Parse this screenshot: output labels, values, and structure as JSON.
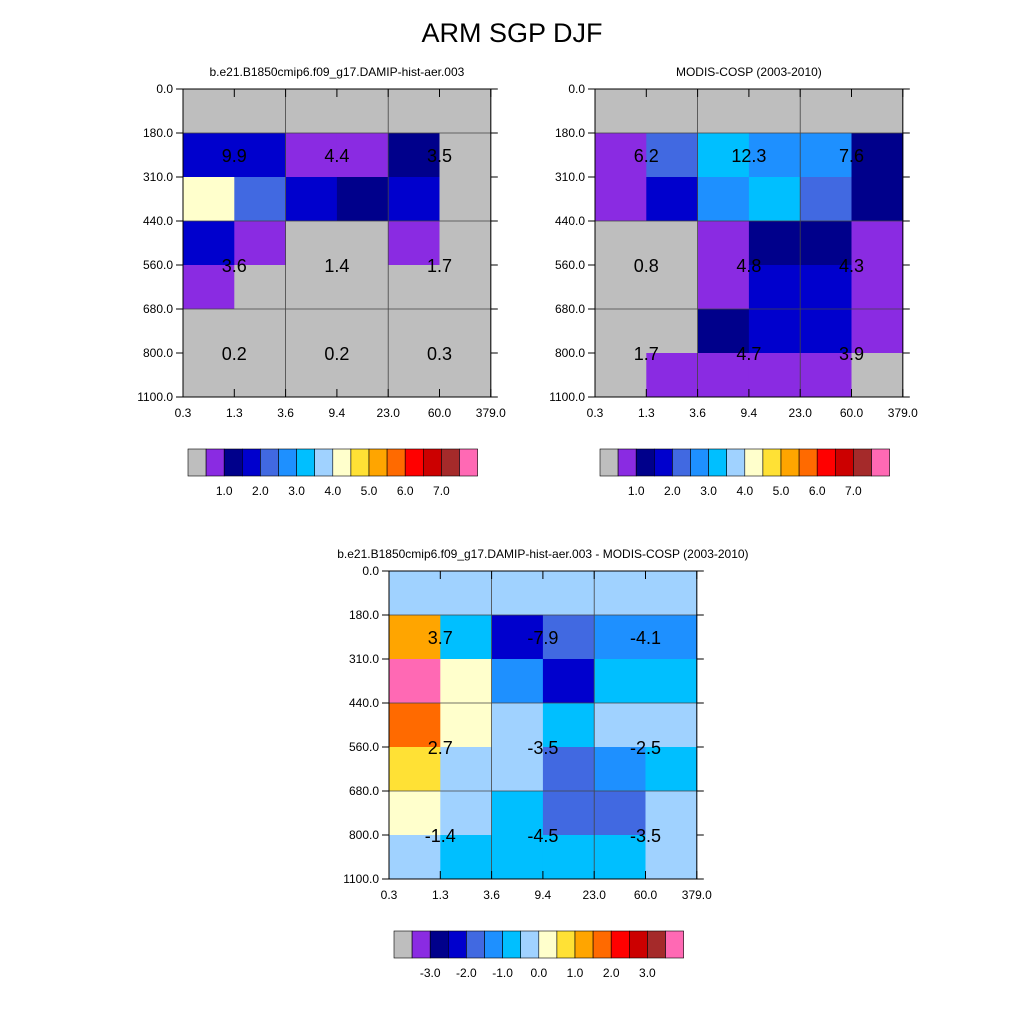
{
  "title": "ARM SGP DJF",
  "palettes": {
    "field": [
      "#bebebe",
      "#8a2be2",
      "#00008b",
      "#0000cd",
      "#4169e1",
      "#1e90ff",
      "#00bfff",
      "#a0d2ff",
      "#ffffcc",
      "#ffe135",
      "#ffa500",
      "#ff6a00",
      "#ff0000",
      "#cc0000",
      "#a52a2a",
      "#ff69b4"
    ],
    "diff": [
      "#bebebe",
      "#8a2be2",
      "#00008b",
      "#0000cd",
      "#4169e1",
      "#1e90ff",
      "#00bfff",
      "#a0d2ff",
      "#ffffcc",
      "#ffe135",
      "#ffa500",
      "#ff6a00",
      "#ff0000",
      "#cc0000",
      "#a52a2a",
      "#ff69b4"
    ]
  },
  "chart_data": [
    {
      "type": "heatmap",
      "title": "b.e21.B1850cmip6.f09_g17.DAMIP-hist-aer.003",
      "x_ticks": [
        "0.3",
        "1.3",
        "3.6",
        "9.4",
        "23.0",
        "60.0",
        "379.0"
      ],
      "y_ticks": [
        "0.0",
        "180.0",
        "310.0",
        "440.0",
        "560.0",
        "680.0",
        "800.0",
        "1100.0"
      ],
      "cells": [
        [
          0,
          0,
          0,
          0,
          0,
          0
        ],
        [
          3,
          3,
          1,
          1,
          2,
          0
        ],
        [
          8,
          4,
          3,
          2,
          3,
          0
        ],
        [
          3,
          1,
          0,
          0,
          1,
          0
        ],
        [
          1,
          0,
          0,
          0,
          0,
          0
        ],
        [
          0,
          0,
          0,
          0,
          0,
          0
        ],
        [
          0,
          0,
          0,
          0,
          0,
          0
        ]
      ],
      "annotations": [
        {
          "label": "9.9",
          "col": 1,
          "row": 1.5
        },
        {
          "label": "4.4",
          "col": 3,
          "row": 1.5
        },
        {
          "label": "3.5",
          "col": 5,
          "row": 1.5
        },
        {
          "label": "3.6",
          "col": 1,
          "row": 4
        },
        {
          "label": "1.4",
          "col": 3,
          "row": 4
        },
        {
          "label": "1.7",
          "col": 5,
          "row": 4
        },
        {
          "label": "0.2",
          "col": 1,
          "row": 6
        },
        {
          "label": "0.2",
          "col": 3,
          "row": 6
        },
        {
          "label": "0.3",
          "col": 5,
          "row": 6
        }
      ],
      "colorbar_labels": [
        "1.0",
        "2.0",
        "3.0",
        "4.0",
        "5.0",
        "6.0",
        "7.0"
      ],
      "grid": true
    },
    {
      "type": "heatmap",
      "title": "MODIS-COSP (2003-2010)",
      "x_ticks": [
        "0.3",
        "1.3",
        "3.6",
        "9.4",
        "23.0",
        "60.0",
        "379.0"
      ],
      "y_ticks": [
        "0.0",
        "180.0",
        "310.0",
        "440.0",
        "560.0",
        "680.0",
        "800.0",
        "1100.0"
      ],
      "cells": [
        [
          0,
          0,
          0,
          0,
          0,
          0
        ],
        [
          1,
          4,
          6,
          5,
          5,
          2
        ],
        [
          1,
          3,
          5,
          6,
          4,
          2
        ],
        [
          0,
          0,
          1,
          2,
          2,
          1
        ],
        [
          0,
          0,
          1,
          3,
          3,
          1
        ],
        [
          0,
          0,
          2,
          3,
          3,
          1
        ],
        [
          0,
          1,
          1,
          1,
          1,
          0
        ]
      ],
      "annotations": [
        {
          "label": "6.2",
          "col": 1,
          "row": 1.5
        },
        {
          "label": "12.3",
          "col": 3,
          "row": 1.5
        },
        {
          "label": "7.6",
          "col": 5,
          "row": 1.5
        },
        {
          "label": "0.8",
          "col": 1,
          "row": 4
        },
        {
          "label": "4.8",
          "col": 3,
          "row": 4
        },
        {
          "label": "4.3",
          "col": 5,
          "row": 4
        },
        {
          "label": "1.7",
          "col": 1,
          "row": 6
        },
        {
          "label": "4.7",
          "col": 3,
          "row": 6
        },
        {
          "label": "3.9",
          "col": 5,
          "row": 6
        }
      ],
      "colorbar_labels": [
        "1.0",
        "2.0",
        "3.0",
        "4.0",
        "5.0",
        "6.0",
        "7.0"
      ],
      "grid": true
    },
    {
      "type": "heatmap",
      "title": "b.e21.B1850cmip6.f09_g17.DAMIP-hist-aer.003 - MODIS-COSP (2003-2010)",
      "x_ticks": [
        "0.3",
        "1.3",
        "3.6",
        "9.4",
        "23.0",
        "60.0",
        "379.0"
      ],
      "y_ticks": [
        "0.0",
        "180.0",
        "310.0",
        "440.0",
        "560.0",
        "680.0",
        "800.0",
        "1100.0"
      ],
      "cells": [
        [
          7,
          7,
          7,
          7,
          7,
          7
        ],
        [
          10,
          6,
          3,
          4,
          5,
          5
        ],
        [
          15,
          8,
          5,
          3,
          6,
          6
        ],
        [
          11,
          8,
          7,
          6,
          7,
          7
        ],
        [
          9,
          7,
          7,
          4,
          5,
          6
        ],
        [
          8,
          7,
          6,
          4,
          4,
          7
        ],
        [
          7,
          6,
          6,
          6,
          6,
          7
        ]
      ],
      "annotations": [
        {
          "label": "3.7",
          "col": 1,
          "row": 1.5
        },
        {
          "label": "-7.9",
          "col": 3,
          "row": 1.5
        },
        {
          "label": "-4.1",
          "col": 5,
          "row": 1.5
        },
        {
          "label": "2.7",
          "col": 1,
          "row": 4
        },
        {
          "label": "-3.5",
          "col": 3,
          "row": 4
        },
        {
          "label": "-2.5",
          "col": 5,
          "row": 4
        },
        {
          "label": "-1.4",
          "col": 1,
          "row": 6
        },
        {
          "label": "-4.5",
          "col": 3,
          "row": 6
        },
        {
          "label": "-3.5",
          "col": 5,
          "row": 6
        }
      ],
      "colorbar_labels": [
        "-3.0",
        "-2.0",
        "-1.0",
        "0.0",
        "1.0",
        "2.0",
        "3.0"
      ],
      "grid": true
    }
  ]
}
